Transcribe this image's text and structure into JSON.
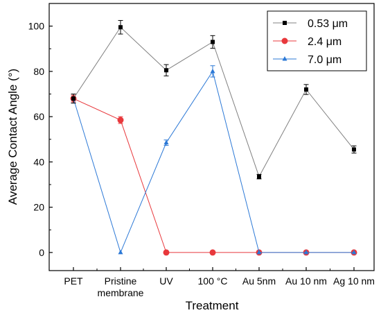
{
  "chart_data": {
    "type": "line",
    "title": "",
    "xlabel": "Treatment",
    "ylabel": "Average Contact Angle (°)",
    "categories": [
      [
        "PET"
      ],
      [
        "Pristine",
        "membrane"
      ],
      [
        "UV"
      ],
      [
        "100 °C"
      ],
      [
        "Au 5nm"
      ],
      [
        "Au 10 nm"
      ],
      [
        "Ag 10 nm"
      ]
    ],
    "ylim": [
      -8,
      110
    ],
    "yticks": [
      0,
      20,
      40,
      60,
      80,
      100
    ],
    "grid": false,
    "legend_position": "top-right",
    "series": [
      {
        "name": "0.53 μm",
        "color": "#000000",
        "line_color": "#808080",
        "marker": "square",
        "values": [
          68,
          99.5,
          80.5,
          93,
          33.5,
          72,
          45.5
        ],
        "errors": [
          2.0,
          3.0,
          2.5,
          2.8,
          1.0,
          2.2,
          1.6
        ]
      },
      {
        "name": "2.4 μm",
        "color": "#e8383c",
        "line_color": "#e8383c",
        "marker": "circle",
        "values": [
          68,
          58.5,
          0,
          0,
          0,
          0,
          0
        ],
        "errors": [
          1.5,
          1.5,
          0,
          0,
          0,
          0,
          0
        ]
      },
      {
        "name": "7.0 μm",
        "color": "#2b78d6",
        "line_color": "#2b78d6",
        "marker": "triangle",
        "values": [
          68,
          0,
          48.5,
          80,
          0,
          0,
          0
        ],
        "errors": [
          2.0,
          0,
          1.2,
          2.5,
          0,
          0,
          0
        ]
      }
    ]
  }
}
